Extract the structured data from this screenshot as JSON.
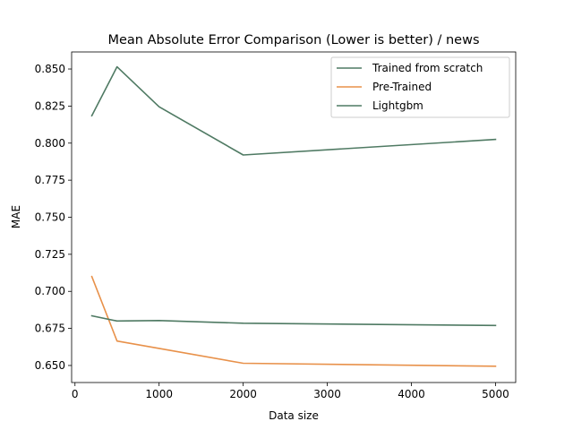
{
  "chart_data": {
    "type": "line",
    "title": "Mean Absolute Error Comparison (Lower is better) / news",
    "xlabel": "Data size",
    "ylabel": "MAE",
    "xlim": [
      -40,
      5240
    ],
    "ylim": [
      0.6385,
      0.8615
    ],
    "xticks": [
      0,
      1000,
      2000,
      3000,
      4000,
      5000
    ],
    "xtick_labels": [
      "0",
      "1000",
      "2000",
      "3000",
      "4000",
      "5000"
    ],
    "yticks": [
      0.65,
      0.675,
      0.7,
      0.725,
      0.75,
      0.775,
      0.8,
      0.825,
      0.85
    ],
    "ytick_labels": [
      "0.650",
      "0.675",
      "0.700",
      "0.725",
      "0.750",
      "0.775",
      "0.800",
      "0.825",
      "0.850"
    ],
    "grid": false,
    "legend_position": "top-right",
    "series": [
      {
        "name": "Trained from scratch",
        "color": "#4f7a63",
        "x": [
          200,
          500,
          1000,
          2000,
          5000
        ],
        "y": [
          0.8185,
          0.8515,
          0.8245,
          0.792,
          0.8025
        ]
      },
      {
        "name": "Pre-Trained",
        "color": "#e8914a",
        "x": [
          200,
          500,
          1000,
          2000,
          5000
        ],
        "y": [
          0.71,
          0.6665,
          0.6615,
          0.6515,
          0.6495
        ]
      },
      {
        "name": "Lightgbm",
        "color": "#4f7a63",
        "x": [
          200,
          500,
          1000,
          2000,
          5000
        ],
        "y": [
          0.6835,
          0.68,
          0.6803,
          0.6785,
          0.677
        ]
      }
    ]
  }
}
